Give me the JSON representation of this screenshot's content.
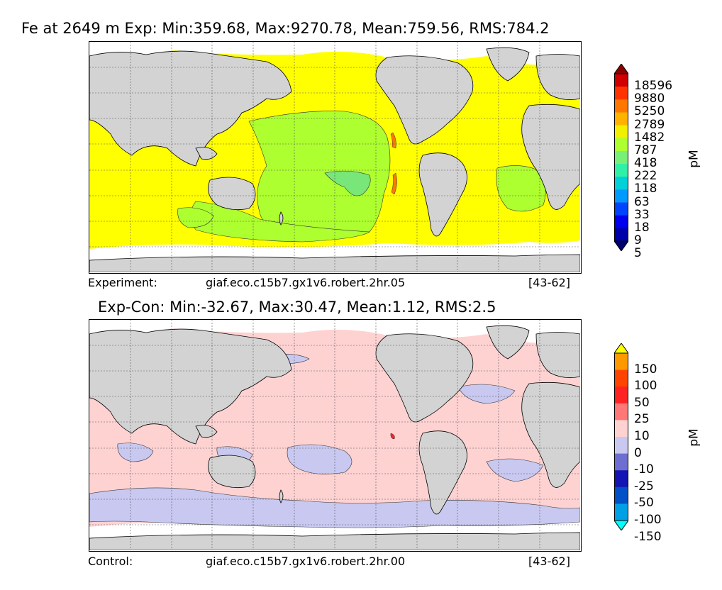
{
  "panel_top": {
    "title": "Fe at 2649 m Exp: Min:359.68, Max:9270.78, Mean:759.56, RMS:784.2",
    "footer_label": "Experiment:",
    "footer_run": "giaf.eco.c15b7.gx1v6.robert.2hr.05",
    "footer_years": "[43-62]",
    "unit": "pM",
    "colorbar": {
      "labels": [
        "18596",
        "9880",
        "5250",
        "2789",
        "1482",
        "787",
        "418",
        "222",
        "118",
        "63",
        "33",
        "18",
        "9",
        "5"
      ],
      "colors": [
        "#8b0000",
        "#d10000",
        "#ff3300",
        "#ff7700",
        "#ffb300",
        "#f0f000",
        "#adff2f",
        "#78f078",
        "#30f0a8",
        "#00d0d8",
        "#0099ff",
        "#0044ff",
        "#0000ee",
        "#0000aa",
        "#00006a"
      ],
      "colors_note": "top to bottom"
    },
    "palette": {
      "ocean_main": "#ffff00",
      "ocean_mid": "#adff2f",
      "ocean_low": "#78e678",
      "land": "#d3d3d3",
      "missing": "#ffffff"
    }
  },
  "panel_bottom": {
    "title": "Exp-Con: Min:-32.67, Max:30.47, Mean:1.12, RMS:2.5",
    "footer_label": "Control:",
    "footer_run": "giaf.eco.c15b7.gx1v6.robert.2hr.00",
    "footer_years": "[43-62]",
    "unit": "pM",
    "colorbar": {
      "labels": [
        "150",
        "100",
        "50",
        "25",
        "10",
        "0",
        "-10",
        "-25",
        "-50",
        "-100",
        "-150"
      ],
      "colors": [
        "#ffff00",
        "#ff9900",
        "#ff4400",
        "#ff2222",
        "#ff7777",
        "#ffd2d2",
        "#c8c8f0",
        "#6e6ed2",
        "#1414b4",
        "#0050c8",
        "#00a0e6",
        "#00ffff"
      ],
      "colors_note": "top to bottom"
    },
    "palette": {
      "ocean_main": "#ffd2d2",
      "ocean_neg": "#c8c8f0",
      "land": "#d3d3d3",
      "missing": "#ffffff"
    }
  }
}
